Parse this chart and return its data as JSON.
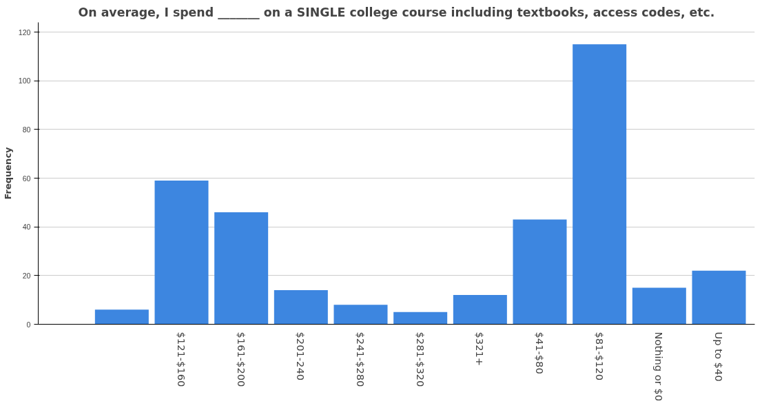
{
  "chart_data": {
    "type": "bar",
    "title": "On average, I spend _______ on a SINGLE college course including textbooks, access codes, etc.",
    "ylabel": "Frequency",
    "categories": [
      null,
      "$121-$160",
      "$161-$200",
      "$201-240",
      "$241-$280",
      "$281-$320",
      "$321+",
      "$41-$80",
      "$81-$120",
      "Nothing or $0",
      "Up to $40"
    ],
    "values": [
      6,
      59,
      46,
      14,
      8,
      5,
      12,
      43,
      115,
      15,
      22
    ],
    "color": "#3d86e0",
    "ylim": [
      0,
      124
    ],
    "yticks": [
      0,
      20,
      40,
      60,
      80,
      100,
      120
    ],
    "grid": "y"
  }
}
